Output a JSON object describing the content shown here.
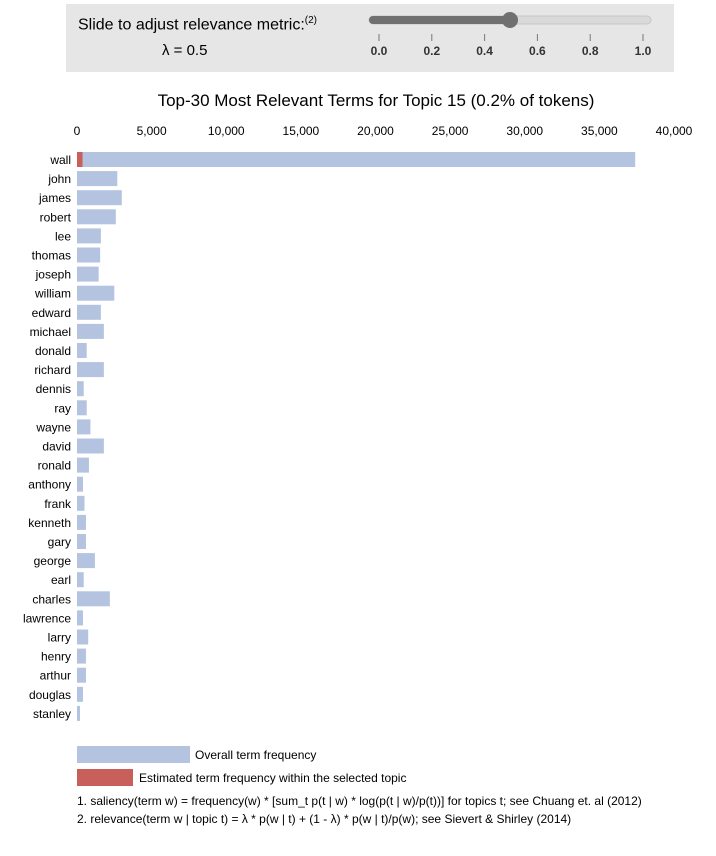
{
  "slider": {
    "label": "Slide to adjust relevance metric:",
    "footnote_ref": "(2)",
    "lambda_text": "λ = 0.5",
    "value": 0.5,
    "min": 0,
    "max": 1,
    "ticks": [
      "0.0",
      "0.2",
      "0.4",
      "0.6",
      "0.8",
      "1.0"
    ],
    "colors": {
      "track": "#d9d9d9",
      "fill": "#707070",
      "thumb": "#707070"
    }
  },
  "chart_data": {
    "type": "bar",
    "orientation": "horizontal",
    "title": "Top-30 Most Relevant Terms for Topic 15 (0.2% of tokens)",
    "xlim": [
      0,
      40000
    ],
    "x_ticks": [
      "0",
      "5,000",
      "10,000",
      "15,000",
      "20,000",
      "25,000",
      "30,000",
      "35,000",
      "40,000"
    ],
    "categories": [
      "wall",
      "john",
      "james",
      "robert",
      "lee",
      "thomas",
      "joseph",
      "william",
      "edward",
      "michael",
      "donald",
      "richard",
      "dennis",
      "ray",
      "wayne",
      "david",
      "ronald",
      "anthony",
      "frank",
      "kenneth",
      "gary",
      "george",
      "earl",
      "charles",
      "lawrence",
      "larry",
      "henry",
      "arthur",
      "douglas",
      "stanley"
    ],
    "series": [
      {
        "name": "Overall term frequency",
        "color": "#b4c3df",
        "values": [
          37400,
          2700,
          3000,
          2600,
          1600,
          1550,
          1450,
          2500,
          1600,
          1800,
          650,
          1800,
          450,
          650,
          900,
          1800,
          800,
          400,
          500,
          600,
          600,
          1200,
          450,
          2200,
          400,
          750,
          600,
          600,
          400,
          200
        ]
      },
      {
        "name": "Estimated term frequency within the selected topic",
        "color": "#c95f5b",
        "values": [
          370,
          0,
          0,
          0,
          0,
          0,
          0,
          0,
          0,
          0,
          0,
          0,
          0,
          0,
          0,
          0,
          0,
          0,
          0,
          0,
          0,
          0,
          0,
          0,
          0,
          0,
          0,
          0,
          0,
          0
        ]
      }
    ],
    "legend_position": "bottom-left"
  },
  "footnotes": [
    "1. saliency(term w) = frequency(w) * [sum_t p(t | w) * log(p(t | w)/p(t))] for topics t; see Chuang et. al (2012)",
    "2. relevance(term w | topic t) = λ * p(w | t) + (1 - λ) * p(w | t)/p(w); see Sievert & Shirley (2014)"
  ]
}
